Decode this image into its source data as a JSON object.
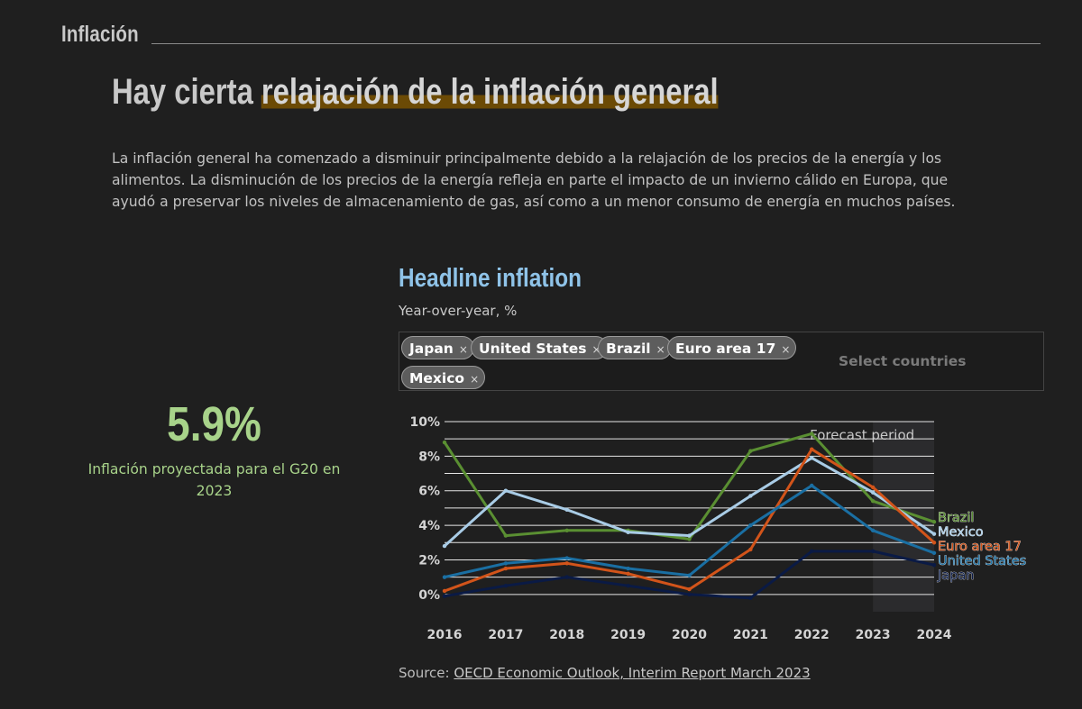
{
  "section": {
    "label": "Inflación"
  },
  "headline": {
    "prefix": "Hay cierta ",
    "highlight": "relajación de la inflación general"
  },
  "body": "La inflación general ha comenzado a disminuir principalmente debido a la relajación de los precios de la energía y los alimentos. La disminución de los precios de la energía refleja en parte el impacto de un invierno cálido en Europa, que ayudó a preservar los niveles de almacenamiento de gas, así como a un menor consumo de energía en muchos países.",
  "kpi": {
    "value": "5.9%",
    "caption": "Inflación proyectada para el G20 en 2023"
  },
  "selector": {
    "tags": [
      "Japan",
      "United States",
      "Brazil",
      "Euro area 17",
      "Mexico"
    ],
    "remove_glyph": "×",
    "placeholder": "Select countries"
  },
  "source": {
    "prefix": "Source: ",
    "link_text": "OECD Economic Outlook, Interim Report March 2023"
  },
  "chart_data": {
    "type": "line",
    "title": "Headline inflation",
    "subtitle": "Year-over-year, %",
    "x": [
      "2016",
      "2017",
      "2018",
      "2019",
      "2020",
      "2021",
      "2022",
      "2023",
      "2024"
    ],
    "ylim": [
      -1,
      10
    ],
    "yticks": [
      0,
      2,
      4,
      6,
      8,
      10
    ],
    "ytick_labels": [
      "0%",
      "2%",
      "4%",
      "6%",
      "8%",
      "10%"
    ],
    "grid": true,
    "forecast_period": {
      "label": "Forecast period",
      "start": "2023",
      "end": "2024"
    },
    "series": [
      {
        "name": "Brazil",
        "color": "#5a8f32",
        "values": [
          8.8,
          3.4,
          3.7,
          3.7,
          3.2,
          8.3,
          9.3,
          5.4,
          4.2
        ]
      },
      {
        "name": "Mexico",
        "color": "#a9cce6",
        "values": [
          2.8,
          6.0,
          4.9,
          3.6,
          3.4,
          5.7,
          7.9,
          5.9,
          3.5
        ]
      },
      {
        "name": "Euro area 17",
        "color": "#d2541a",
        "values": [
          0.2,
          1.5,
          1.8,
          1.2,
          0.3,
          2.6,
          8.4,
          6.2,
          3.0
        ]
      },
      {
        "name": "United States",
        "color": "#1a6fa3",
        "values": [
          1.0,
          1.8,
          2.1,
          1.5,
          1.1,
          4.0,
          6.3,
          3.7,
          2.4
        ]
      },
      {
        "name": "Japan",
        "color": "#0a1a45",
        "values": [
          -0.1,
          0.5,
          1.0,
          0.5,
          0.0,
          -0.2,
          2.5,
          2.5,
          1.7
        ]
      }
    ],
    "legend_order": [
      "Brazil",
      "Mexico",
      "Euro area 17",
      "United States",
      "Japan"
    ]
  }
}
